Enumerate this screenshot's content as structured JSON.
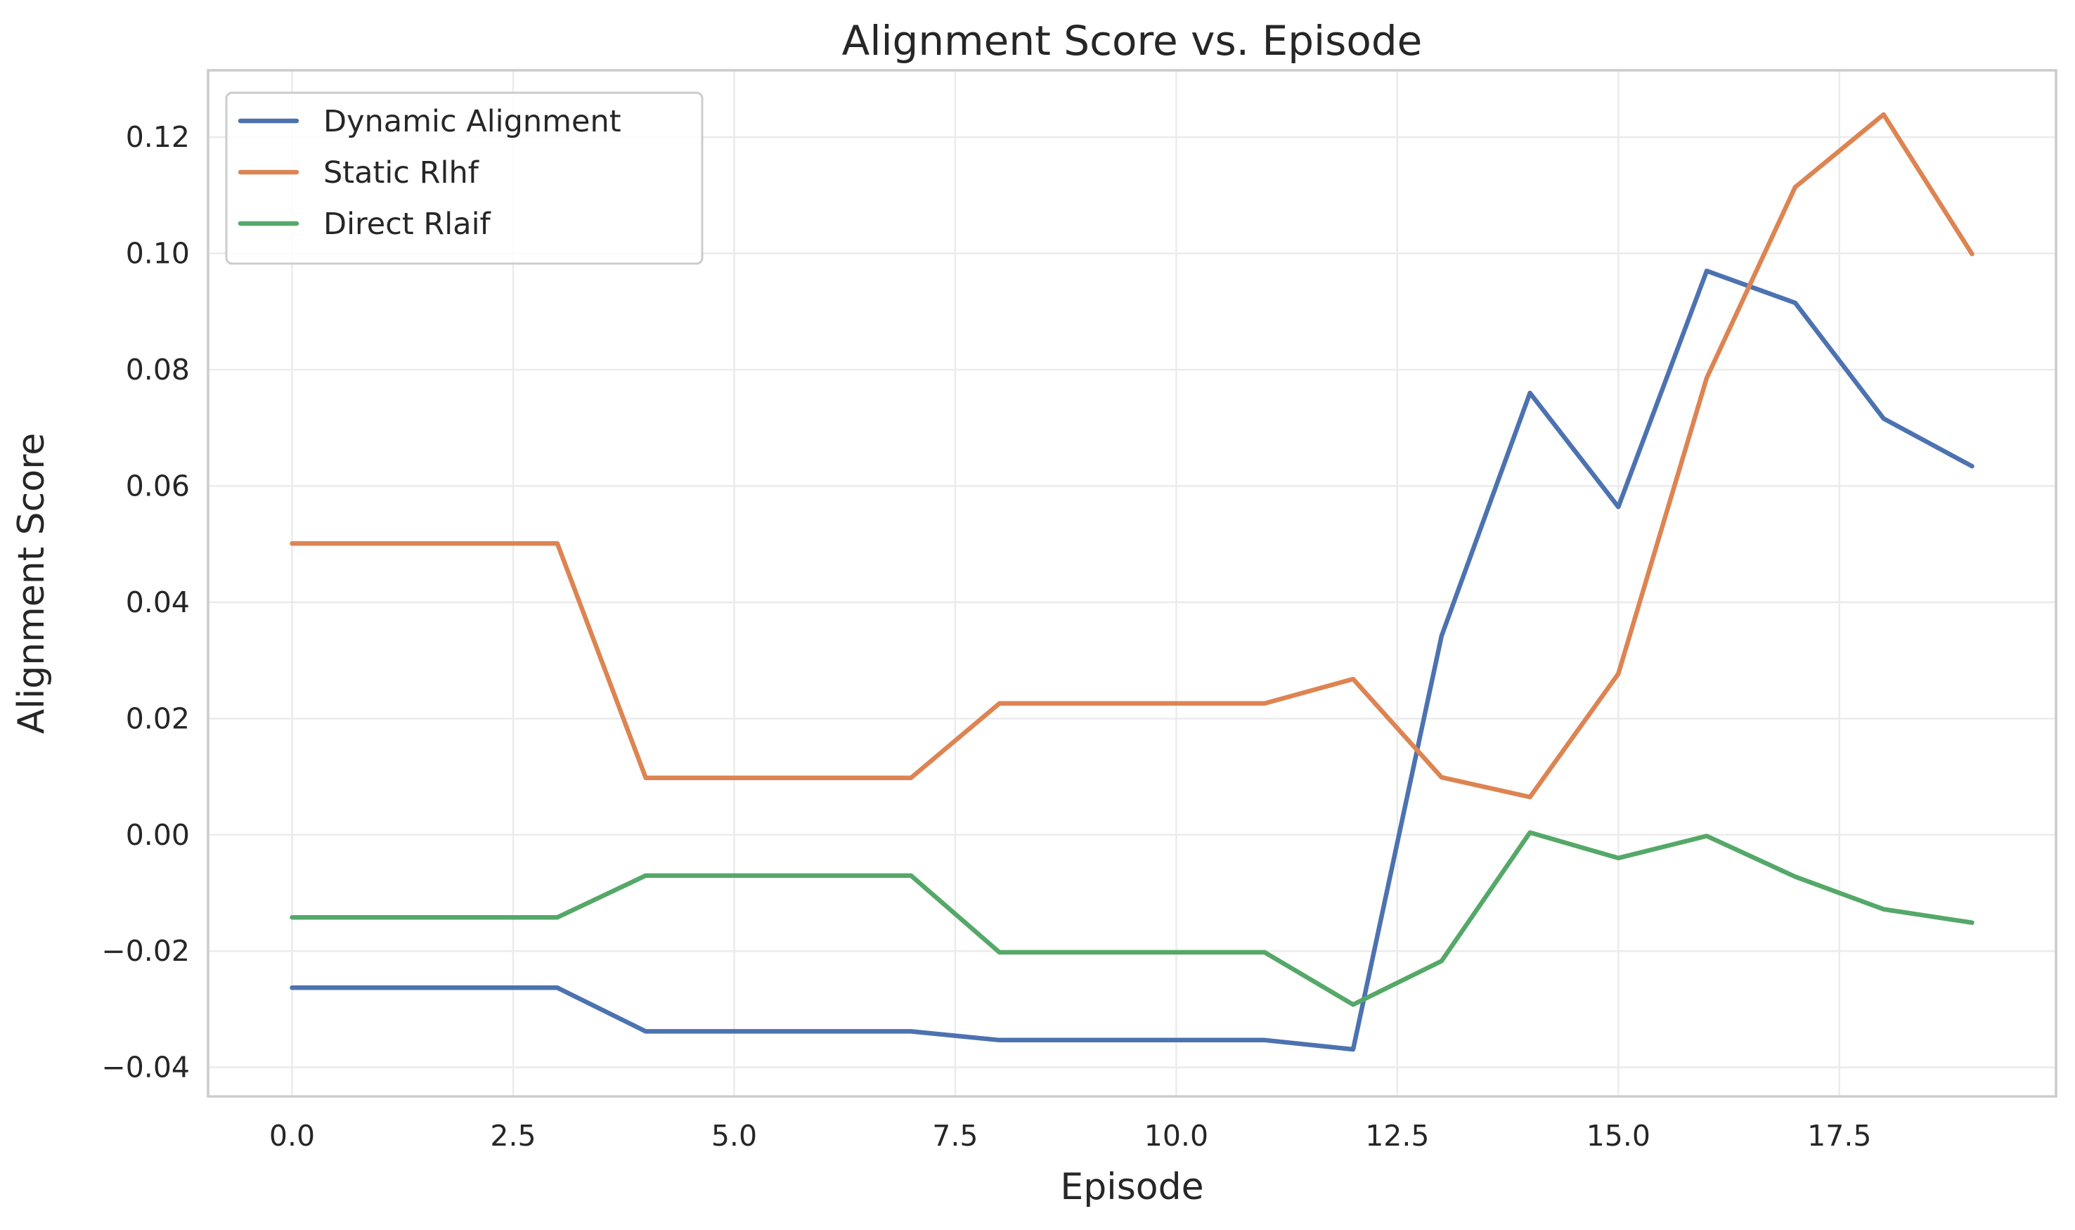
{
  "chart_data": {
    "type": "line",
    "title": "Alignment Score vs. Episode",
    "xlabel": "Episode",
    "ylabel": "Alignment Score",
    "xlim": [
      -0.95,
      19.95
    ],
    "ylim": [
      -0.045,
      0.1315
    ],
    "x_ticks": [
      0.0,
      2.5,
      5.0,
      7.5,
      10.0,
      12.5,
      15.0,
      17.5
    ],
    "x_tick_labels": [
      "0.0",
      "2.5",
      "5.0",
      "7.5",
      "10.0",
      "12.5",
      "15.0",
      "17.5"
    ],
    "y_ticks": [
      -0.04,
      -0.02,
      0.0,
      0.02,
      0.04,
      0.06,
      0.08,
      0.1,
      0.12
    ],
    "y_tick_labels": [
      "−0.04",
      "−0.02",
      "0.00",
      "0.02",
      "0.04",
      "0.06",
      "0.08",
      "0.10",
      "0.12"
    ],
    "grid": true,
    "legend_position": "top-left",
    "x": [
      0,
      1,
      2,
      3,
      4,
      5,
      6,
      7,
      8,
      9,
      10,
      11,
      12,
      13,
      14,
      15,
      16,
      17,
      18,
      19
    ],
    "series": [
      {
        "name": "Dynamic Alignment",
        "color": "#4c72b0",
        "values": [
          -0.0263,
          -0.0263,
          -0.0263,
          -0.0263,
          -0.0338,
          -0.0338,
          -0.0338,
          -0.0338,
          -0.0353,
          -0.0353,
          -0.0353,
          -0.0353,
          -0.0369,
          0.0342,
          0.076,
          0.0564,
          0.097,
          0.0915,
          0.0716,
          0.0634
        ]
      },
      {
        "name": "Static Rlhf",
        "color": "#dd8452",
        "values": [
          0.0501,
          0.0501,
          0.0501,
          0.0501,
          0.0098,
          0.0098,
          0.0098,
          0.0098,
          0.0226,
          0.0226,
          0.0226,
          0.0226,
          0.0268,
          0.0099,
          0.0065,
          0.0277,
          0.0786,
          0.1114,
          0.1239,
          0.0999
        ]
      },
      {
        "name": "Direct Rlaif",
        "color": "#55a868",
        "values": [
          -0.0142,
          -0.0142,
          -0.0142,
          -0.0142,
          -0.007,
          -0.007,
          -0.007,
          -0.007,
          -0.0202,
          -0.0202,
          -0.0202,
          -0.0202,
          -0.0292,
          -0.0217,
          0.0004,
          -0.004,
          -0.0002,
          -0.0072,
          -0.0128,
          -0.0151
        ]
      }
    ]
  }
}
